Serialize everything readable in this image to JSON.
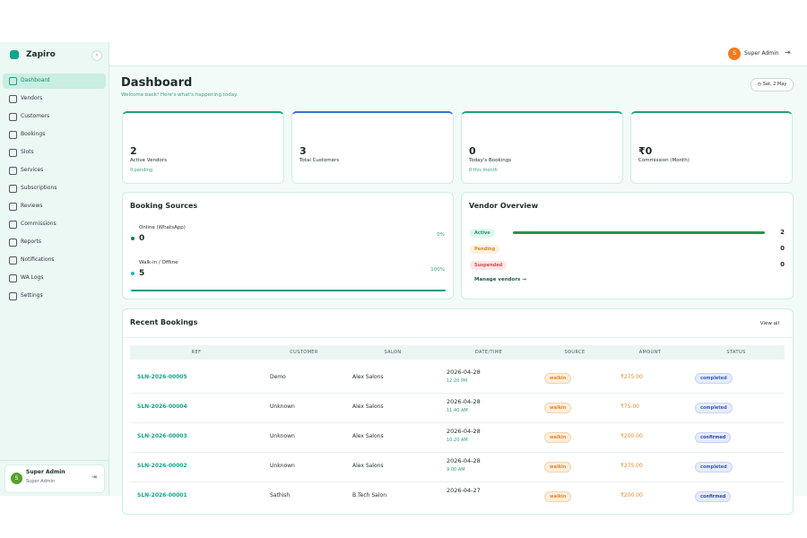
{
  "brand": "Zapiro",
  "nav": [
    "Dashboard",
    "Vendors",
    "Customers",
    "Bookings",
    "Slots",
    "Services",
    "Subscriptions",
    "Reviews",
    "Commissions",
    "Reports",
    "Notifications",
    "WA Logs",
    "Settings"
  ],
  "sidebar_user": {
    "initial": "S",
    "name": "Super Admin",
    "role": "Super Admin"
  },
  "header": {
    "initial": "S",
    "name": "Super Admin"
  },
  "page": {
    "title": "Dashboard",
    "subtitle": "Welcome back! Here's what's happening today.",
    "date": "Sat, 2 May"
  },
  "stats": [
    {
      "value": "2",
      "label": "Active Vendors",
      "sub": "0 pending"
    },
    {
      "value": "3",
      "label": "Total Customers"
    },
    {
      "value": "0",
      "label": "Today's Bookings",
      "sub": "0 this month"
    },
    {
      "value": "₹0",
      "label": "Commission (Month)"
    }
  ],
  "booking_sources": {
    "title": "Booking Sources",
    "items": [
      {
        "name": "Online (WhatsApp)",
        "value": "0",
        "percent": "0%"
      },
      {
        "name": "Walk-in / Offline",
        "value": "5",
        "percent": "100%"
      }
    ]
  },
  "vendor_overview": {
    "title": "Vendor Overview",
    "items": [
      {
        "status": "Active",
        "count": "2"
      },
      {
        "status": "Pending",
        "count": "0"
      },
      {
        "status": "Suspended",
        "count": "0"
      }
    ],
    "link": "Manage vendors →"
  },
  "recent_bookings": {
    "title": "Recent Bookings",
    "link": "View all",
    "columns": [
      "REF",
      "CUSTOMER",
      "SALON",
      "DATE/TIME",
      "SOURCE",
      "AMOUNT",
      "STATUS"
    ],
    "rows": [
      {
        "ref": "SLN-2026-00005",
        "customer": "Demo",
        "salon": "Alex Salons",
        "date": "2026-04-28",
        "time": "12:20 PM",
        "source": "walkin",
        "amount": "₹275.00",
        "status": "completed"
      },
      {
        "ref": "SLN-2026-00004",
        "customer": "Unknown",
        "salon": "Alex Salons",
        "date": "2026-04-28",
        "time": "11:40 AM",
        "source": "walkin",
        "amount": "₹75.00",
        "status": "completed"
      },
      {
        "ref": "SLN-2026-00003",
        "customer": "Unknown",
        "salon": "Alex Salons",
        "date": "2026-04-28",
        "time": "10:20 AM",
        "source": "walkin",
        "amount": "₹200.00",
        "status": "confirmed"
      },
      {
        "ref": "SLN-2026-00002",
        "customer": "Unknown",
        "salon": "Alex Salons",
        "date": "2026-04-28",
        "time": "9:00 AM",
        "source": "walkin",
        "amount": "₹275.00",
        "status": "completed"
      },
      {
        "ref": "SLN-2026-00001",
        "customer": "Sathish",
        "salon": "B.Tech Salon",
        "date": "2026-04-27",
        "source": "walkin",
        "amount": "₹200.00",
        "status": "confirmed"
      }
    ]
  }
}
